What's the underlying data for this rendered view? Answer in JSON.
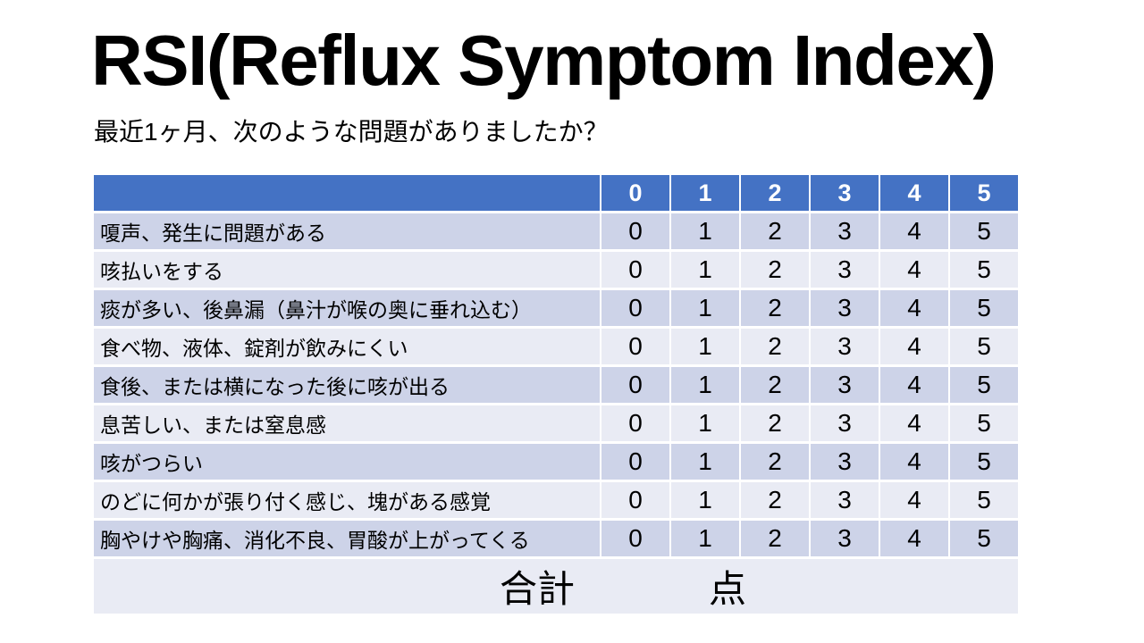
{
  "slide": {
    "title": "RSI(Reflux Symptom Index)",
    "subtitle": "最近1ヶ月、次のような問題がありましたか？"
  },
  "table": {
    "header": {
      "first": "",
      "scores": [
        "0",
        "1",
        "2",
        "3",
        "4",
        "5"
      ]
    },
    "rows": [
      {
        "label": "嗄声、発生に問題がある",
        "scores": [
          "0",
          "1",
          "2",
          "3",
          "4",
          "5"
        ]
      },
      {
        "label": "咳払いをする",
        "scores": [
          "0",
          "1",
          "2",
          "3",
          "4",
          "5"
        ]
      },
      {
        "label": "痰が多い、後鼻漏（鼻汁が喉の奥に垂れ込む）",
        "scores": [
          "0",
          "1",
          "2",
          "3",
          "4",
          "5"
        ]
      },
      {
        "label": "食べ物、液体、錠剤が飲みにくい",
        "scores": [
          "0",
          "1",
          "2",
          "3",
          "4",
          "5"
        ]
      },
      {
        "label": "食後、または横になった後に咳が出る",
        "scores": [
          "0",
          "1",
          "2",
          "3",
          "4",
          "5"
        ]
      },
      {
        "label": "息苦しい、または窒息感",
        "scores": [
          "0",
          "1",
          "2",
          "3",
          "4",
          "5"
        ]
      },
      {
        "label": "咳がつらい",
        "scores": [
          "0",
          "1",
          "2",
          "3",
          "4",
          "5"
        ]
      },
      {
        "label": "のどに何かが張り付く感じ、塊がある感覚",
        "scores": [
          "0",
          "1",
          "2",
          "3",
          "4",
          "5"
        ]
      },
      {
        "label": "胸やけや胸痛、消化不良、胃酸が上がってくる",
        "scores": [
          "0",
          "1",
          "2",
          "3",
          "4",
          "5"
        ]
      }
    ],
    "footer": {
      "total_label": "合計",
      "unit_label": "点"
    }
  },
  "colors": {
    "header_bg": "#4472C4",
    "band_dark": "#CDD3E8",
    "band_light": "#E9EBF4",
    "header_text": "#FFFFFF",
    "body_text": "#000000"
  }
}
